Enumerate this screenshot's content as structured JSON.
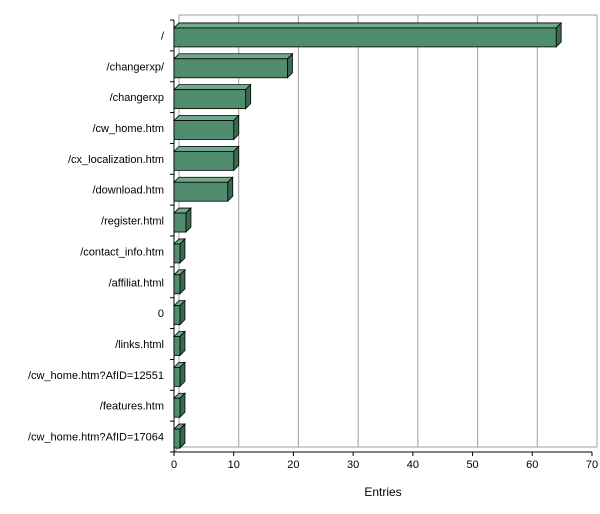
{
  "chart_data": {
    "type": "bar",
    "orientation": "horizontal",
    "title": "",
    "xlabel": "Entries",
    "ylabel": "",
    "categories": [
      "/",
      "/changerxp/",
      "/changerxp",
      "/cw_home.htm",
      "/cx_localization.htm",
      "/download.htm",
      "/register.html",
      "/contact_info.htm",
      "/affiliat.html",
      "0",
      "/links.html",
      "/cw_home.htm?AfID=12551",
      "/features.htm",
      "/cw_home.htm?AfID=17064"
    ],
    "values": [
      64,
      19,
      12,
      10,
      10,
      9,
      2,
      1,
      1,
      1,
      1,
      1,
      1,
      1
    ],
    "xlim": [
      0,
      70
    ],
    "xticks": [
      "0",
      "10",
      "20",
      "30",
      "40",
      "50",
      "60",
      "70"
    ],
    "grid": true,
    "legend": "none",
    "colors": {
      "bar_front": "#508c6e",
      "bar_top": "#6faa8c",
      "bar_side": "#3a6a52",
      "grid": "#a0a0a0",
      "axis": "#000000"
    }
  }
}
